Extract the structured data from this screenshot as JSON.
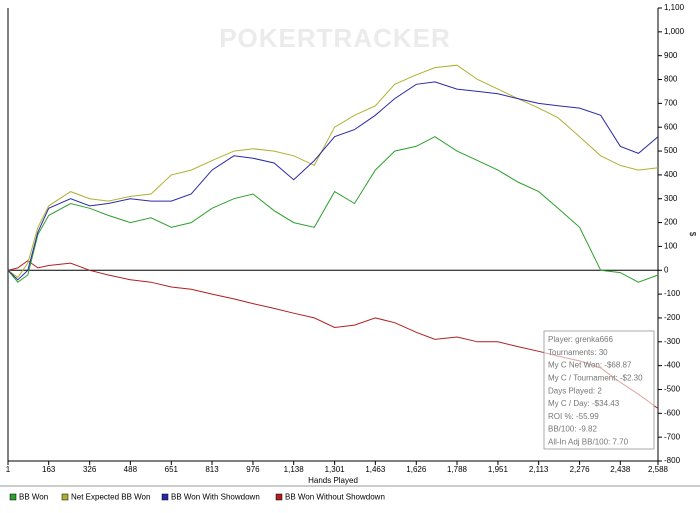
{
  "chart_data": {
    "type": "line",
    "watermark": "POKERTRACKER",
    "x_label": "Hands Played",
    "y_label": "$",
    "x": [
      1,
      40,
      80,
      120,
      163,
      250,
      326,
      400,
      488,
      570,
      651,
      730,
      813,
      900,
      976,
      1060,
      1138,
      1220,
      1301,
      1380,
      1463,
      1540,
      1626,
      1700,
      1788,
      1870,
      1951,
      2030,
      2113,
      2190,
      2276,
      2360,
      2438,
      2510,
      2588
    ],
    "series": [
      {
        "name": "BB Won",
        "color": "#2ca02c",
        "values": [
          0,
          -50,
          -20,
          150,
          230,
          280,
          260,
          230,
          200,
          220,
          180,
          200,
          260,
          300,
          320,
          250,
          200,
          180,
          330,
          280,
          420,
          500,
          520,
          560,
          500,
          460,
          420,
          370,
          330,
          260,
          180,
          0,
          -10,
          -50,
          -20
        ]
      },
      {
        "name": "Net Expected BB Won",
        "color": "#b0b030",
        "values": [
          0,
          -30,
          30,
          180,
          270,
          330,
          300,
          290,
          310,
          320,
          400,
          420,
          460,
          500,
          510,
          500,
          480,
          440,
          600,
          650,
          690,
          780,
          820,
          850,
          860,
          800,
          760,
          720,
          680,
          640,
          560,
          480,
          440,
          420,
          430
        ]
      },
      {
        "name": "BB Won With Showdown",
        "color": "#2a2aa8",
        "values": [
          0,
          -40,
          0,
          160,
          260,
          300,
          270,
          280,
          300,
          290,
          290,
          320,
          420,
          480,
          470,
          450,
          380,
          460,
          560,
          590,
          650,
          720,
          780,
          790,
          760,
          750,
          740,
          720,
          700,
          690,
          680,
          650,
          520,
          490,
          560
        ]
      },
      {
        "name": "BB Won Without Showdown",
        "color": "#b02020",
        "values": [
          0,
          10,
          40,
          10,
          20,
          30,
          0,
          -20,
          -40,
          -50,
          -70,
          -80,
          -100,
          -120,
          -140,
          -160,
          -180,
          -200,
          -240,
          -230,
          -200,
          -220,
          -260,
          -290,
          -280,
          -300,
          -300,
          -320,
          -340,
          -360,
          -380,
          -410,
          -470,
          -520,
          -580
        ]
      }
    ],
    "xlim": [
      1,
      2588
    ],
    "xticks": [
      1,
      163,
      326,
      488,
      651,
      813,
      976,
      {
        "value": 1138,
        "label": "1,138"
      },
      {
        "value": 1301,
        "label": "1,301"
      },
      {
        "value": 1463,
        "label": "1,463"
      },
      {
        "value": 1626,
        "label": "1,626"
      },
      {
        "value": 1788,
        "label": "1,788"
      },
      {
        "value": 1951,
        "label": "1,951"
      },
      {
        "value": 2113,
        "label": "2,113"
      },
      {
        "value": 2276,
        "label": "2,276"
      },
      {
        "value": 2438,
        "label": "2,438"
      },
      {
        "value": 2588,
        "label": "2,588"
      }
    ],
    "ylim": [
      -800,
      1100
    ],
    "yticks": [
      -800,
      -700,
      -600,
      -500,
      -400,
      -300,
      -200,
      -100,
      0,
      100,
      200,
      300,
      400,
      500,
      600,
      700,
      800,
      900,
      {
        "value": 1000,
        "label": "1,000"
      },
      {
        "value": 1100,
        "label": "1,100"
      }
    ],
    "stats": [
      "Player: grenka666",
      "Tournaments: 30",
      "My C Net Won: -$68.87",
      "My C / Tournament: -$2.30",
      "Days Played: 2",
      "My C / Day: -$34.43",
      "ROI %: -55.99",
      "BB/100: -9.82",
      "All-In Adj BB/100: 7.70"
    ]
  }
}
